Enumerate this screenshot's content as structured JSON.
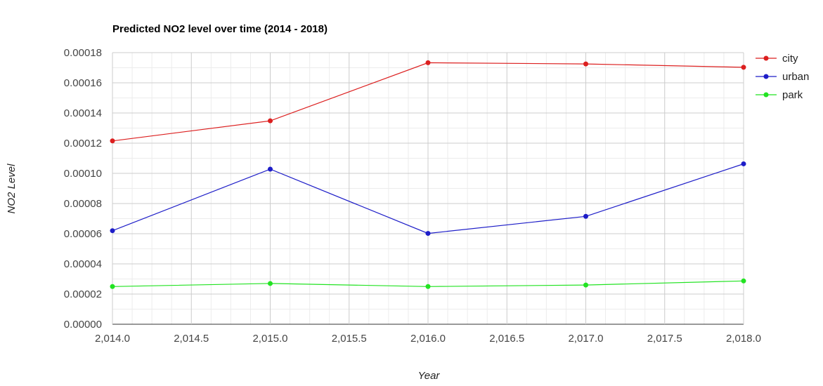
{
  "chart_data": {
    "type": "line",
    "title": "Predicted NO2 level over time (2014 - 2018)",
    "xlabel": "Year",
    "ylabel": "NO2 Level",
    "x": [
      2014,
      2015,
      2016,
      2017,
      2018
    ],
    "xlim": [
      2014,
      2018
    ],
    "ylim": [
      0,
      0.00018
    ],
    "x_ticks": [
      "2,014.0",
      "2,014.5",
      "2,015.0",
      "2,015.5",
      "2,016.0",
      "2,016.5",
      "2,017.0",
      "2,017.5",
      "2,018.0"
    ],
    "y_ticks": [
      "0.00000",
      "0.00002",
      "0.00004",
      "0.00006",
      "0.00008",
      "0.00010",
      "0.00012",
      "0.00014",
      "0.00016",
      "0.00018"
    ],
    "grid": true,
    "legend_position": "right",
    "series": [
      {
        "name": "city",
        "color": "#dc1f1f",
        "values": [
          0.0001215,
          0.0001348,
          0.0001733,
          0.0001725,
          0.0001703
        ]
      },
      {
        "name": "urban",
        "color": "#1d1dc8",
        "values": [
          6.2e-05,
          0.0001028,
          6.02e-05,
          7.15e-05,
          0.0001063
        ]
      },
      {
        "name": "park",
        "color": "#22e322",
        "values": [
          2.5e-05,
          2.7e-05,
          2.5e-05,
          2.6e-05,
          2.87e-05
        ]
      }
    ]
  }
}
